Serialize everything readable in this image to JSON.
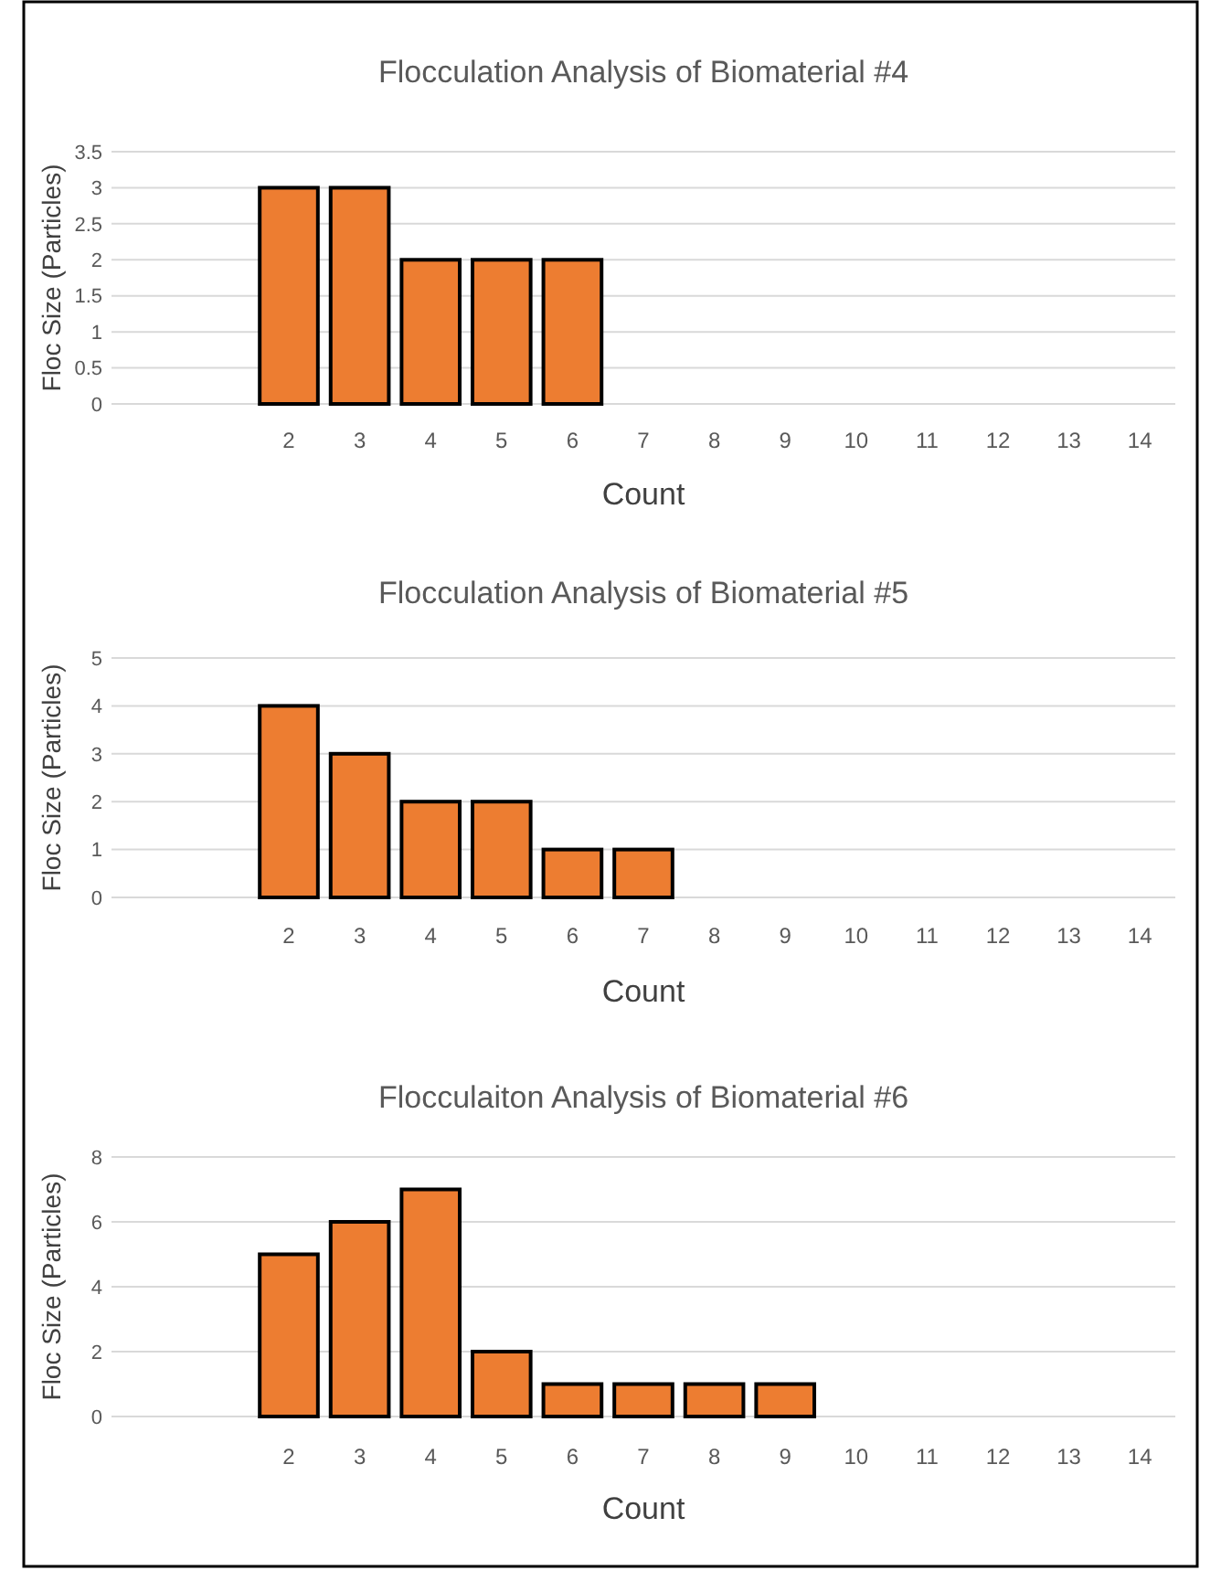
{
  "chart_data": [
    {
      "type": "bar",
      "title": "Flocculation Analysis of Biomaterial  #4",
      "xlabel": "Count",
      "ylabel": "Floc Size (Particles)",
      "categories": [
        null,
        null,
        "2",
        "3",
        "4",
        "5",
        "6",
        "7",
        "8",
        "9",
        "10",
        "11",
        "12",
        "13",
        "14"
      ],
      "values": [
        null,
        null,
        3,
        3,
        2,
        2,
        2,
        null,
        null,
        null,
        null,
        null,
        null,
        null,
        null
      ],
      "color": "#ed7d31",
      "ylim": [
        0,
        3.5
      ],
      "yticks": [
        0,
        0.5,
        1,
        1.5,
        2,
        2.5,
        3,
        3.5
      ],
      "grid": "y"
    },
    {
      "type": "bar",
      "title": "Flocculation Analysis of Biomaterial  #5",
      "xlabel": "Count",
      "ylabel": "Floc Size (Particles)",
      "categories": [
        null,
        null,
        "2",
        "3",
        "4",
        "5",
        "6",
        "7",
        "8",
        "9",
        "10",
        "11",
        "12",
        "13",
        "14"
      ],
      "values": [
        null,
        null,
        4,
        3,
        2,
        2,
        1,
        1,
        null,
        null,
        null,
        null,
        null,
        null,
        null
      ],
      "color": "#ed7d31",
      "ylim": [
        0,
        5
      ],
      "yticks": [
        0,
        1,
        2,
        3,
        4,
        5
      ],
      "grid": "y"
    },
    {
      "type": "bar",
      "title": "Flocculaiton Analysis of Biomaterial  #6",
      "xlabel": "Count",
      "ylabel": "Floc Size (Particles)",
      "categories": [
        null,
        null,
        "2",
        "3",
        "4",
        "5",
        "6",
        "7",
        "8",
        "9",
        "10",
        "11",
        "12",
        "13",
        "14"
      ],
      "values": [
        null,
        null,
        5,
        6,
        7,
        2,
        1,
        1,
        1,
        1,
        null,
        null,
        null,
        null,
        null
      ],
      "color": "#ed7d31",
      "ylim": [
        0,
        8
      ],
      "yticks": [
        0,
        2,
        4,
        6,
        8
      ],
      "grid": "y"
    }
  ]
}
